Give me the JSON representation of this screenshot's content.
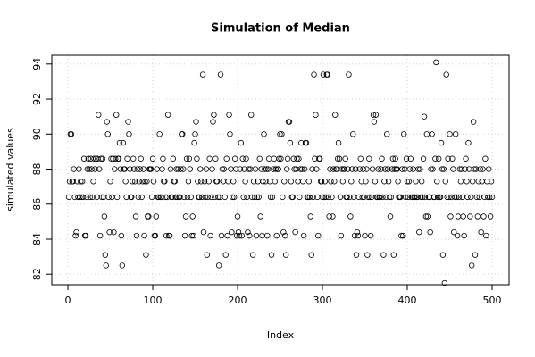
{
  "chart_data": {
    "type": "scatter",
    "title": "Simulation of Median",
    "x_label": "Index",
    "y_label": "simulated values",
    "color": "#000000",
    "grid": true,
    "xlim": [
      -19,
      520
    ],
    "xticks": [
      0,
      100,
      200,
      300,
      400,
      500
    ],
    "ylim": [
      81.4,
      94.5
    ],
    "yticks": [
      82,
      84,
      86,
      88,
      90,
      92,
      94
    ],
    "x": [
      1,
      2,
      3,
      4,
      5,
      6,
      7,
      8,
      9,
      10,
      11,
      12,
      13,
      14,
      15,
      16,
      17,
      18,
      19,
      20,
      21,
      22,
      23,
      24,
      25,
      26,
      27,
      28,
      29,
      30,
      31,
      32,
      33,
      34,
      35,
      36,
      37,
      38,
      39,
      40,
      41,
      42,
      43,
      44,
      45,
      46,
      47,
      48,
      49,
      50,
      51,
      52,
      53,
      54,
      55,
      56,
      57,
      58,
      59,
      60,
      61,
      62,
      63,
      64,
      65,
      66,
      67,
      68,
      69,
      70,
      71,
      72,
      73,
      74,
      75,
      76,
      77,
      78,
      79,
      80,
      81,
      82,
      83,
      84,
      85,
      86,
      87,
      88,
      89,
      90,
      91,
      92,
      93,
      94,
      95,
      96,
      97,
      98,
      99,
      100,
      101,
      102,
      103,
      104,
      105,
      106,
      107,
      108,
      109,
      110,
      111,
      112,
      113,
      114,
      115,
      116,
      117,
      118,
      119,
      120,
      121,
      122,
      123,
      124,
      125,
      126,
      127,
      128,
      129,
      130,
      131,
      132,
      133,
      134,
      135,
      136,
      137,
      138,
      139,
      140,
      141,
      142,
      143,
      144,
      145,
      146,
      147,
      148,
      149,
      150,
      151,
      152,
      153,
      154,
      155,
      156,
      157,
      158,
      159,
      160,
      161,
      162,
      163,
      164,
      165,
      166,
      167,
      168,
      169,
      170,
      171,
      172,
      173,
      174,
      175,
      176,
      177,
      178,
      179,
      180,
      181,
      182,
      183,
      184,
      185,
      186,
      187,
      188,
      189,
      190,
      191,
      192,
      193,
      194,
      195,
      196,
      197,
      198,
      199,
      200,
      201,
      202,
      203,
      204,
      205,
      206,
      207,
      208,
      209,
      210,
      211,
      212,
      213,
      214,
      215,
      216,
      217,
      218,
      219,
      220,
      221,
      222,
      223,
      224,
      225,
      226,
      227,
      228,
      229,
      230,
      231,
      232,
      233,
      234,
      235,
      236,
      237,
      238,
      239,
      240,
      241,
      242,
      243,
      244,
      245,
      246,
      247,
      248,
      249,
      250,
      251,
      252,
      253,
      254,
      255,
      256,
      257,
      258,
      259,
      260,
      261,
      262,
      263,
      264,
      265,
      266,
      267,
      268,
      269,
      270,
      271,
      272,
      273,
      274,
      275,
      276,
      277,
      278,
      279,
      280,
      281,
      282,
      283,
      284,
      285,
      286,
      287,
      288,
      289,
      290,
      291,
      292,
      293,
      294,
      295,
      296,
      297,
      298,
      299,
      300,
      301,
      302,
      303,
      304,
      305,
      306,
      307,
      308,
      309,
      310,
      311,
      312,
      313,
      314,
      315,
      316,
      317,
      318,
      319,
      320,
      321,
      322,
      323,
      324,
      325,
      326,
      327,
      328,
      329,
      330,
      331,
      332,
      333,
      334,
      335,
      336,
      337,
      338,
      339,
      340,
      341,
      342,
      343,
      344,
      345,
      346,
      347,
      348,
      349,
      350,
      351,
      352,
      353,
      354,
      355,
      356,
      357,
      358,
      359,
      360,
      361,
      362,
      363,
      364,
      365,
      366,
      367,
      368,
      369,
      370,
      371,
      372,
      373,
      374,
      375,
      376,
      377,
      378,
      379,
      380,
      381,
      382,
      383,
      384,
      385,
      386,
      387,
      388,
      389,
      390,
      391,
      392,
      393,
      394,
      395,
      396,
      397,
      398,
      399,
      400,
      401,
      402,
      403,
      404,
      405,
      406,
      407,
      408,
      409,
      410,
      411,
      412,
      413,
      414,
      415,
      416,
      417,
      418,
      419,
      420,
      421,
      422,
      423,
      424,
      425,
      426,
      427,
      428,
      429,
      430,
      431,
      432,
      433,
      434,
      435,
      436,
      437,
      438,
      439,
      440,
      441,
      442,
      443,
      444,
      445,
      446,
      447,
      448,
      449,
      450,
      451,
      452,
      453,
      454,
      455,
      456,
      457,
      458,
      459,
      460,
      461,
      462,
      463,
      464,
      465,
      466,
      467,
      468,
      469,
      470,
      471,
      472,
      473,
      474,
      475,
      476,
      477,
      478,
      479,
      480,
      481,
      482,
      483,
      484,
      485,
      486,
      487,
      488,
      489,
      490,
      491,
      492,
      493,
      494,
      495,
      496,
      497,
      498,
      499,
      500
    ],
    "values": [
      86.4,
      87.3,
      90,
      90,
      87.3,
      87.3,
      88,
      86.4,
      84.2,
      84.4,
      87.3,
      86.4,
      88,
      86.4,
      87.3,
      86.4,
      87.3,
      86.4,
      88.6,
      84.2,
      84.2,
      86.4,
      88,
      88.6,
      88,
      86.4,
      88.6,
      88,
      86.4,
      87.3,
      88.6,
      88,
      88.6,
      86.4,
      88.6,
      91.1,
      88,
      84.2,
      88.6,
      86.4,
      88.6,
      86.4,
      85.3,
      83.1,
      82.5,
      90.7,
      90,
      86.4,
      84.4,
      87.3,
      88.6,
      86.4,
      88.6,
      84.4,
      88,
      88.6,
      91.1,
      86.4,
      88.6,
      88.6,
      89.5,
      88,
      84.2,
      82.5,
      89.5,
      88,
      88,
      87.3,
      86.4,
      88.6,
      90.7,
      90,
      88,
      86.4,
      86.4,
      87.3,
      88.6,
      88,
      87.3,
      85.3,
      84.2,
      88,
      86.4,
      87.3,
      88,
      88.6,
      86.4,
      87.3,
      88,
      84.2,
      87.3,
      83.1,
      87.3,
      85.3,
      85.3,
      88,
      88,
      88,
      86.4,
      88.6,
      87.3,
      84.2,
      84.2,
      85.3,
      88,
      86.4,
      86.4,
      90,
      86.4,
      86.4,
      88,
      88.6,
      87.3,
      87.3,
      86.4,
      84.2,
      86.4,
      91.1,
      84.2,
      84.2,
      88,
      86.4,
      86.4,
      88.6,
      87.3,
      87.3,
      86.4,
      88,
      86.4,
      88,
      86.4,
      86.4,
      88,
      90,
      90,
      88,
      86.4,
      84.2,
      85.3,
      88.6,
      86.4,
      87.3,
      88.6,
      88,
      86.4,
      84.2,
      85.3,
      84.2,
      89.5,
      90,
      90.7,
      88.6,
      87.3,
      86.4,
      86.4,
      88,
      87.3,
      86.4,
      93.4,
      84.4,
      87.3,
      86.4,
      88,
      83.1,
      86.4,
      87.3,
      88.6,
      84.2,
      86.4,
      88,
      90.7,
      91.1,
      86.4,
      88.6,
      87.3,
      87.3,
      86.4,
      82.5,
      86.4,
      93.4,
      84.2,
      88,
      87.3,
      88,
      86.4,
      83.1,
      88.6,
      84.2,
      87.3,
      91.1,
      90,
      88,
      84.4,
      86.4,
      87.3,
      86.4,
      88.6,
      88,
      84.2,
      85.3,
      84.4,
      84.2,
      88,
      89.5,
      84.2,
      88.6,
      86.4,
      88,
      87.3,
      88.6,
      86.4,
      84.4,
      88,
      84.2,
      88,
      91.1,
      86.4,
      83.1,
      87.3,
      86.4,
      88,
      84.2,
      86.4,
      87.3,
      86.4,
      88.6,
      85.3,
      88,
      84.2,
      87.3,
      90,
      88,
      87.3,
      88,
      84.2,
      88,
      88.6,
      87.3,
      86.4,
      83.1,
      86.4,
      88,
      88.6,
      87.3,
      88,
      84.2,
      88,
      88,
      88.6,
      90,
      88.6,
      90,
      86.4,
      84.4,
      87.3,
      84.2,
      83.1,
      88,
      88.6,
      90.7,
      90.7,
      89.5,
      87.3,
      86.4,
      86.4,
      88.6,
      88,
      84.4,
      88,
      88.6,
      87.3,
      88.6,
      86.4,
      88,
      89.5,
      88,
      87.3,
      84.2,
      88,
      89.5,
      89.5,
      86.4,
      86.4,
      87.3,
      86.4,
      85.3,
      83.1,
      88,
      86.4,
      93.4,
      88.6,
      91.1,
      88,
      86.4,
      84.2,
      88.6,
      88.6,
      87.3,
      87.3,
      86.4,
      93.4,
      86.4,
      87.3,
      86.4,
      93.4,
      93.4,
      86.4,
      85.3,
      88,
      87.3,
      86.4,
      85.3,
      88,
      87.3,
      91.1,
      88,
      88,
      88.6,
      89.5,
      88.6,
      86.4,
      84.2,
      88,
      87.3,
      88,
      88,
      88.6,
      86.4,
      86.4,
      88,
      93.4,
      86.4,
      85.3,
      87.3,
      88,
      90,
      86.4,
      84.2,
      88,
      83.1,
      84.4,
      84.2,
      86.4,
      88,
      88.6,
      87.3,
      86.4,
      88,
      86.4,
      84.2,
      87.3,
      88,
      83.1,
      86.4,
      88.6,
      86.4,
      84.2,
      86.4,
      88,
      91.1,
      90.7,
      87.3,
      91.1,
      86.4,
      86.4,
      88,
      86.4,
      86.4,
      88,
      88.6,
      86.4,
      83.1,
      87.3,
      88,
      86.4,
      90,
      88,
      87.3,
      86.4,
      85.3,
      86.4,
      88,
      88.6,
      83.1,
      88,
      88.6,
      88,
      88,
      87.3,
      86.4,
      86.4,
      86.4,
      84.2,
      88,
      84.2,
      90,
      88,
      86.4,
      88.6,
      87.3,
      86.4,
      87.3,
      88,
      88.6,
      86.4,
      86.4,
      88,
      86.4,
      86.4,
      87.3,
      86.4,
      86.4,
      88,
      84.4,
      88,
      86.4,
      87.3,
      86.4,
      88.6,
      91,
      86.4,
      85.3,
      90,
      85.3,
      86.4,
      86.4,
      84.4,
      88,
      90,
      88,
      86.4,
      86.4,
      88.6,
      94.1,
      87.3,
      86.4,
      88.6,
      86.4,
      86.4,
      89.5,
      88,
      83.1,
      88,
      81.5,
      87.3,
      93.4,
      86.4,
      88.6,
      86.4,
      90,
      85.3,
      86.4,
      88.6,
      88,
      84.4,
      86.4,
      90,
      86.4,
      84.2,
      85.3,
      86.4,
      88,
      87.3,
      88,
      86.4,
      85.3,
      84.2,
      88,
      88.6,
      87.3,
      86.4,
      89.5,
      88,
      85.3,
      86.4,
      82.5,
      87.3,
      90.7,
      88,
      83.1,
      88,
      86.4,
      85.3,
      87.3,
      86.4,
      88,
      84.4,
      87.3,
      88,
      85.3,
      86.4,
      88.6,
      84.2,
      87.3,
      86.4,
      88,
      86.4,
      85.3,
      87.3,
      86.4
    ]
  }
}
